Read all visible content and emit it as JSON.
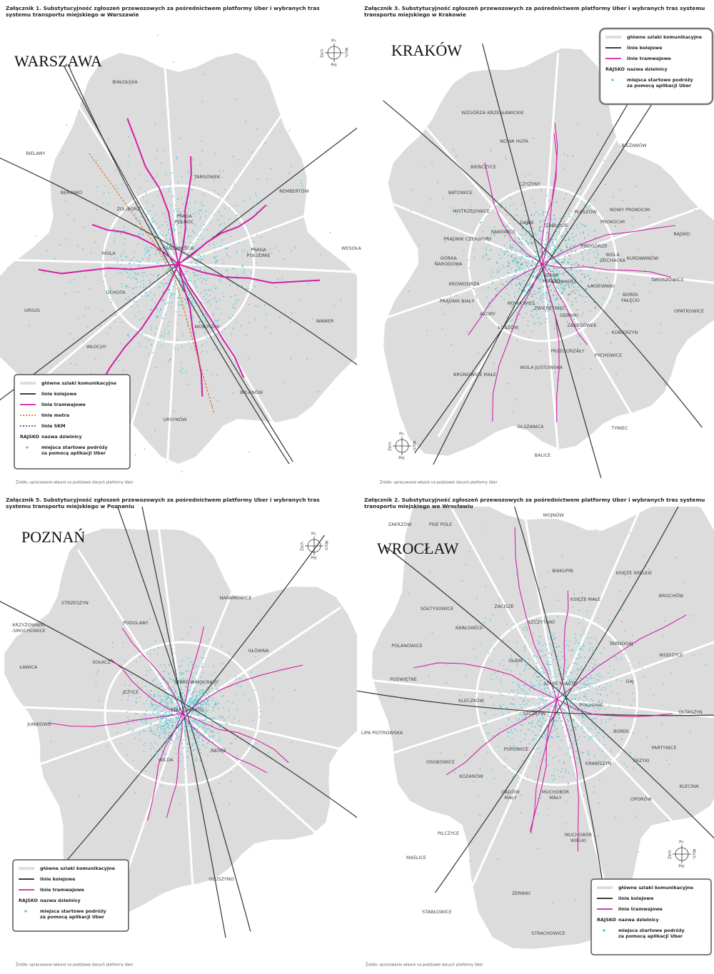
{
  "compass": {
    "n": "Pn.",
    "e": "Wsch.",
    "s": "Płd.",
    "w": "Zach."
  },
  "maps": [
    {
      "title": [
        "Załącznik 1. Substytucyjność zgłoszeń przewozowych za pośrednictwem platformy Uber i wybranych tras",
        "systemu transportu miejskiego w Warszawie"
      ],
      "city": "WARSZAWA",
      "districts": [
        "BIAŁOŁĘKA",
        "BIELANY",
        "TARGÓWEK",
        "BEMOWO",
        "REMBERTÓW",
        "ŻOLIBORZ",
        [
          "PRAGA",
          "PÓŁNOC"
        ],
        "WESOŁA",
        "ŚRÓDMIEŚCIE",
        [
          "PRAGA",
          "POŁUDNIE"
        ],
        "WOLA",
        "OCHOTA",
        "URSUS",
        "WAWER",
        "MOKOTÓW",
        "WŁOCHY",
        "WILANÓW",
        "URSYNÓW"
      ],
      "legend": [
        {
          "label": "główne szlaki komunikacyjne",
          "color": "#dddddd"
        },
        {
          "label": "linie kolejowe",
          "color": "#222222"
        },
        {
          "label": "linie tramwajowe",
          "color": "#d21fa5"
        },
        {
          "label": "linie metra",
          "color": "#e07a1f",
          "dashed": true
        },
        {
          "label": "linie SKM",
          "color": "#6b3fa0",
          "dashed": true
        },
        {
          "sample": "RAJSKO",
          "label": "nazwa dzielnicy"
        },
        {
          "label": [
            "miejsca startowe podróży",
            "za pomocą aplikacji Uber"
          ],
          "color": "#3cc6d8"
        }
      ],
      "source": "Źródło: opracowanie własne na podstawie danych platformy Uber"
    },
    {
      "title": [
        "Załącznik 3. Substytucyjność zgłoszeń przewozowych za pośrednictwem platformy Uber i wybranych tras systemu",
        "transportu miejskiego w Krakowie"
      ],
      "city": "KRAKÓW",
      "districts": [
        "WZGÓRZA KRZESŁAWICKIE",
        "NOWA HUTA",
        "BIEŃCZYCE",
        "BIEŻANÓW",
        "CZYŻYNY",
        "BATOWICE",
        "MISTRZEJOWICE",
        "PŁASZÓW",
        "NOWY PROKOCIM",
        "ZABŁOCIE",
        "PROKOCIM",
        "DĄBIE",
        "RAKOWICE",
        "PRĄDNIK CZERWONY",
        "RAJSKO",
        [
          "GÓRKA",
          "NARODOWA"
        ],
        "PODGÓRZE",
        [
          "WOLA",
          "DUCHACKA"
        ],
        "KURDWANÓW",
        "KROWODRZA",
        [
          "STARE",
          "MIASTO"
        ],
        "KAZIMIERZ",
        "SWOSZOWICE",
        "PRĄDNIK BIAŁY",
        "ŁAGIEWNIKI",
        [
          "BOREK",
          "FAŁĘCKI"
        ],
        "NOWA WIEŚ",
        "ZWIERZYNIEC",
        "AZORY",
        "OPATKOWICE",
        "DĘBNIKI",
        "ŁOBZÓW",
        "ZAKRZÓWEK",
        "KOBIERZYN",
        "PRZEGORZAŁY",
        "PYCHOWICE",
        "WOLA JUSTOWSKA",
        "BRONOWICE MAŁE",
        "OLSZANICA",
        "TYNIEC",
        "BALICE"
      ],
      "legend": [
        {
          "label": "główne szlaki komunikacyjne",
          "color": "#dddddd"
        },
        {
          "label": "linie kolejowe",
          "color": "#222222"
        },
        {
          "label": "linie tramwajowe",
          "color": "#d21fa5"
        },
        {
          "sample": "RAJSKO",
          "label": "nazwa dzielnicy"
        },
        {
          "label": [
            "miejsca startowe podróży",
            "za pomocą aplikacji Uber"
          ],
          "color": "#3cc6d8"
        }
      ],
      "source": "Źródło: opracowanie własne na podstawie danych platformy Uber"
    },
    {
      "title": [
        "Załącznik 5. Substytucyjność zgłoszeń przewozowych za pośrednictwem platformy Uber i wybranych tras",
        "systemu transportu miejskiego w Poznaniu"
      ],
      "city": "POZNAŃ",
      "districts": [
        "STRZESZYN",
        "NARAMOWICE",
        [
          "KRZYŻOWNIKI",
          "-SMOCHOWICE"
        ],
        "PODOLANY",
        "GŁÓWNA",
        "SOŁACZ",
        "ŁAWICA",
        "STARE WINOGRADY",
        "JEŻYCE",
        "STARE MIASTO",
        "JUNIKOWO",
        "RATAJE",
        "WILDA",
        "GŁUSZYNO"
      ],
      "legend": [
        {
          "label": "główne szlaki komunikacyjne",
          "color": "#dddddd"
        },
        {
          "label": "linie kolejowe",
          "color": "#222222"
        },
        {
          "label": "linie tramwajowe",
          "color": "#d21fa5"
        },
        {
          "sample": "RAJSKO",
          "label": "nazwa dzielnicy"
        },
        {
          "label": [
            "miejsca startowe podróży",
            "za pomocą aplikacji Uber"
          ],
          "color": "#3cc6d8"
        }
      ],
      "source": "Źródło: opracowanie własne na podstawie danych platformy Uber"
    },
    {
      "title": [
        "Załącznik 2. Substytucyjność zgłoszeń przewozowych za pośrednictwem platformy Uber i wybranych tras systemu",
        "transportu miejskiego we Wrocławiu"
      ],
      "city": "WROCŁAW",
      "districts": [
        "WOJNÓW",
        "ZAKRZÓW",
        "PSIE POLE",
        "BISKUPIN",
        "KSIĘŻE WIELKIE",
        "BROCHÓW",
        "ZACISZE",
        "KSIĘŻE MAŁE",
        "SOŁTYSOWICE",
        "SZCZYTNIKI",
        "KARŁOWICE",
        "TARNOGAJ",
        "POLANOWICE",
        "WOJSZYCE",
        "OŁBIN",
        "POŚWIĘTNE",
        "STARE MIASTO",
        "GAJ",
        "KLECZKÓW",
        "POŁUDNIE",
        "OŁTASZYN",
        "SZCZEPIN",
        "LIPA PIOTROWSKA",
        "BOREK",
        "PARTYNICE",
        "POPOWICE",
        "OSOBOWICE",
        "GRABISZYN",
        "KRZYKI",
        "KOZANÓW",
        "KLECINA",
        [
          "GĄDÓW",
          "MAŁY"
        ],
        [
          "MUCHOBÓR",
          "MAŁY"
        ],
        "OPORÓW",
        "PILCZYCE",
        [
          "MUCHOBÓR",
          "WIELKI"
        ],
        "MAŚLICE",
        "ŻERNIKI",
        "STABŁOWICE",
        "STRACHOWICE"
      ],
      "legend": [
        {
          "label": "główne szlaki komunikacyjne",
          "color": "#dddddd"
        },
        {
          "label": "linie kolejowe",
          "color": "#222222"
        },
        {
          "label": "linie tramwajowe",
          "color": "#d21fa5"
        },
        {
          "sample": "RAJSKO",
          "label": "nazwa dzielnicy"
        },
        {
          "label": [
            "miejsca startowe podróży",
            "za pomocą aplikacji Uber"
          ],
          "color": "#3cc6d8"
        }
      ],
      "source": "Źródło: opracowanie własne na podstawie danych platformy Uber"
    }
  ]
}
